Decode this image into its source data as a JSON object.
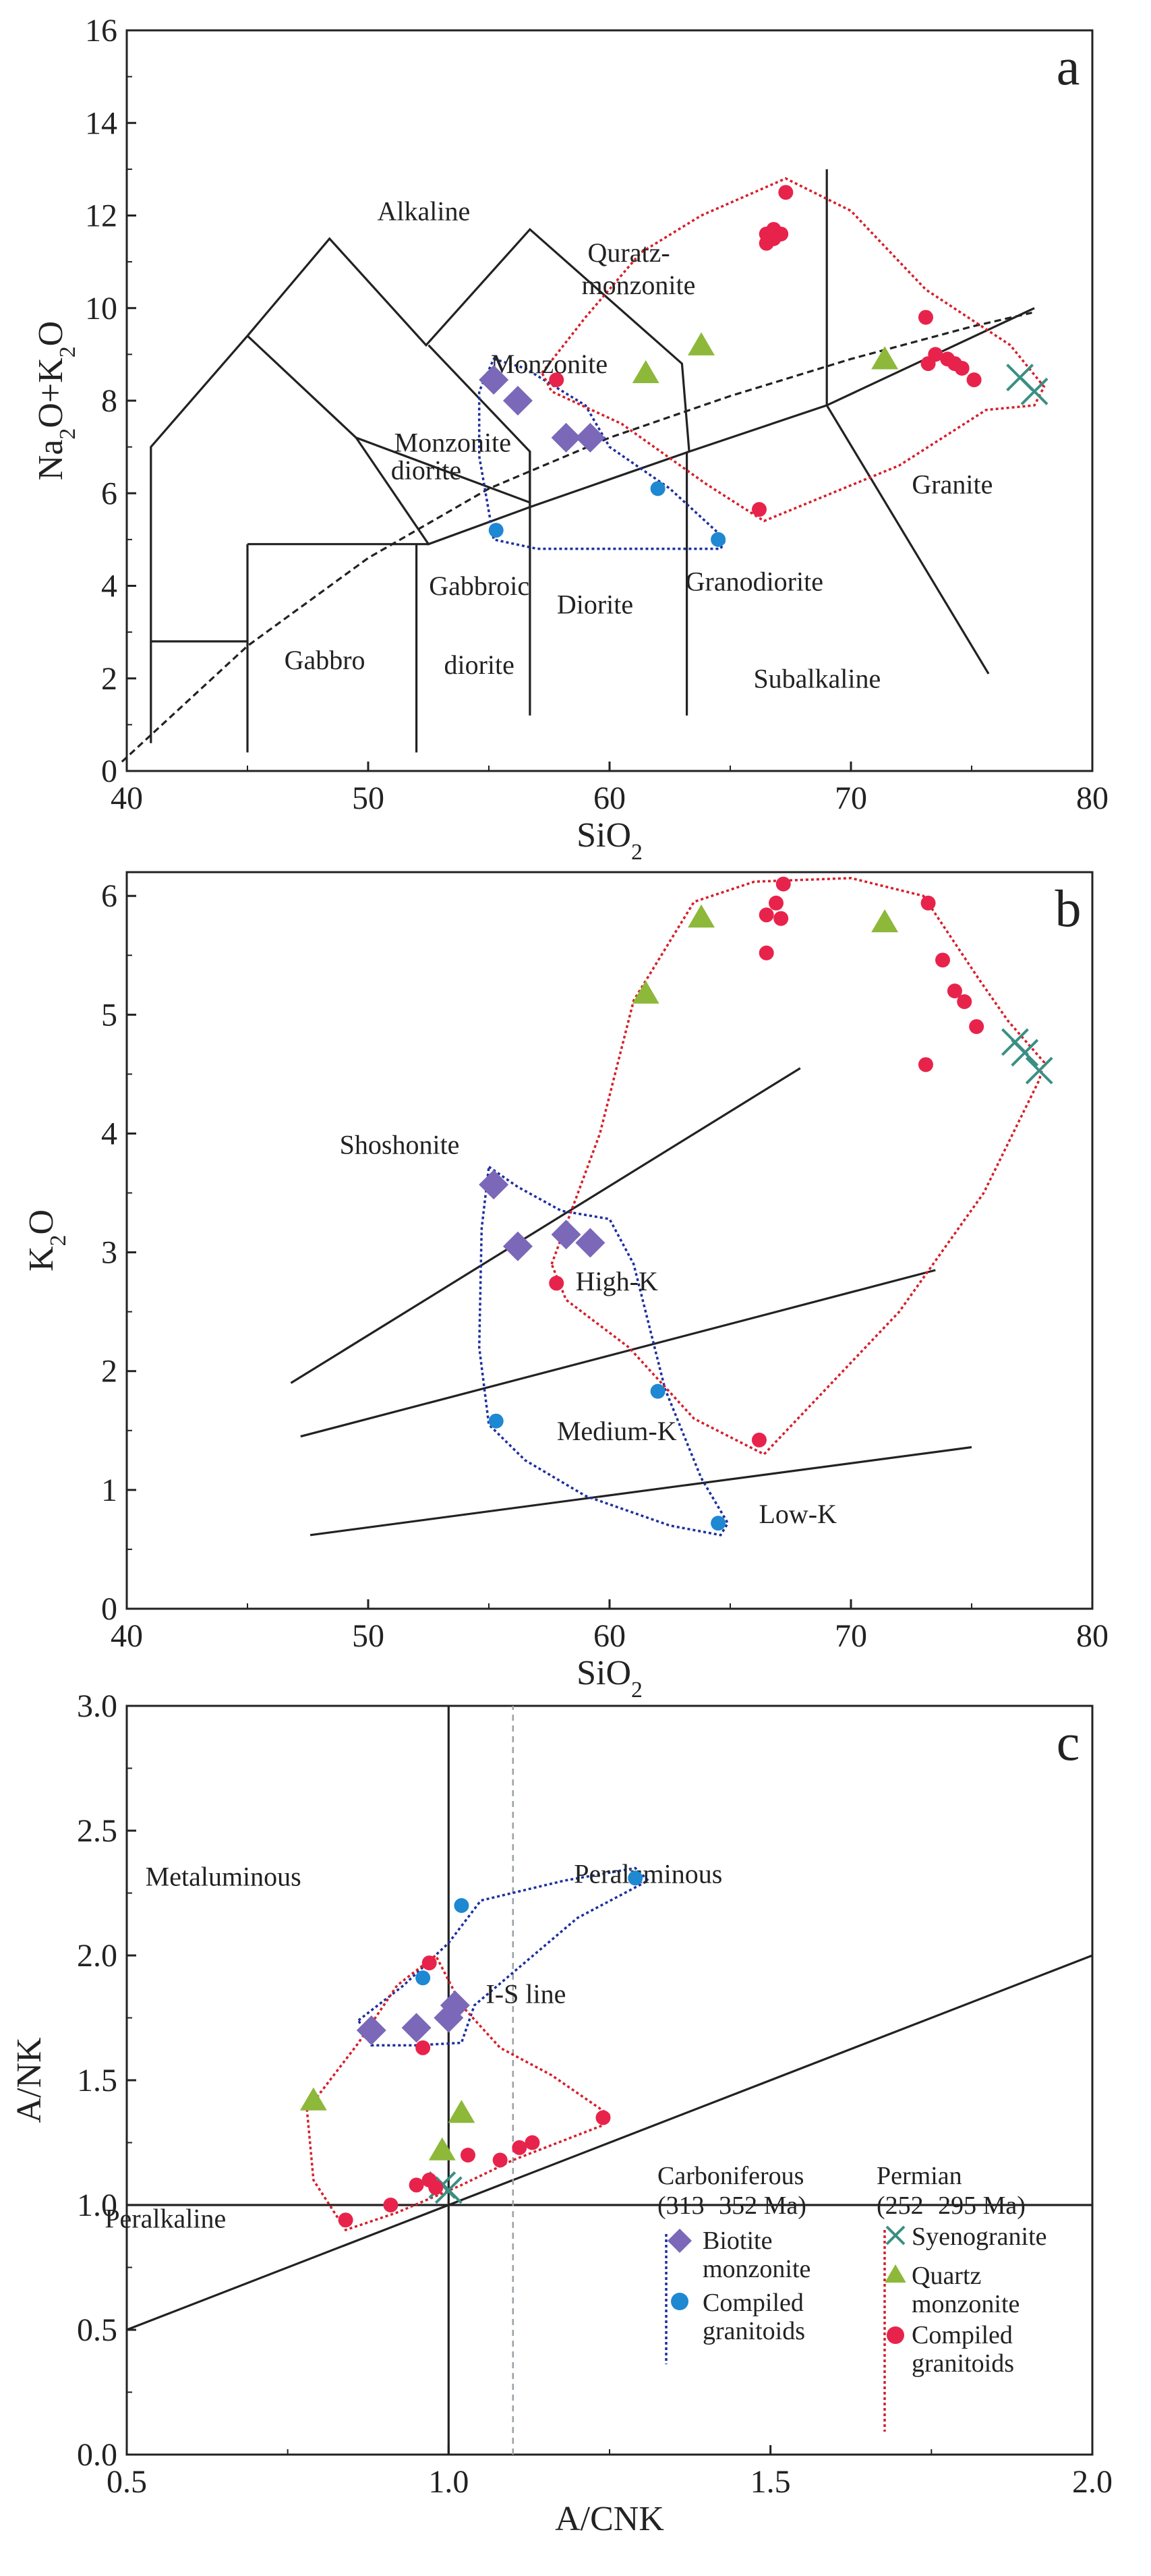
{
  "chart_data": [
    {
      "panel": "a",
      "type": "scatter",
      "title": "a",
      "xlabel": "SiO2",
      "ylabel": "Na2O+K2O",
      "xlim": [
        40,
        80
      ],
      "ylim": [
        0,
        16
      ],
      "x_ticks": [
        "40",
        "50",
        "60",
        "70",
        "80"
      ],
      "y_ticks": [
        "0",
        "2",
        "4",
        "6",
        "8",
        "10",
        "12",
        "14",
        "16"
      ],
      "field_labels": [
        {
          "text": "Alkaline",
          "x": 52.3,
          "y": 11.9
        },
        {
          "text": "Quratz-",
          "x": 60.8,
          "y": 11.0
        },
        {
          "text": "monzonite",
          "x": 61.2,
          "y": 10.3
        },
        {
          "text": "Monzonite",
          "x": 57.5,
          "y": 8.6
        },
        {
          "text": "Monzonite",
          "x": 53.5,
          "y": 6.9
        },
        {
          "text": "diorite",
          "x": 52.4,
          "y": 6.3
        },
        {
          "text": "Granite",
          "x": 74.2,
          "y": 6.0
        },
        {
          "text": "Diorite",
          "x": 59.4,
          "y": 3.4
        },
        {
          "text": "Granodiorite",
          "x": 66.0,
          "y": 3.9
        },
        {
          "text": "Gabbroic",
          "x": 54.6,
          "y": 3.8
        },
        {
          "text": "diorite",
          "x": 54.6,
          "y": 2.1
        },
        {
          "text": "Gabbro",
          "x": 48.2,
          "y": 2.2
        },
        {
          "text": "Subalkaline",
          "x": 68.6,
          "y": 1.8
        }
      ],
      "series": [
        {
          "name": "Biotite monzonite",
          "marker": "diamond",
          "color": "#7B68B8",
          "points": [
            [
              55.2,
              8.45
            ],
            [
              56.2,
              8.0
            ],
            [
              58.2,
              7.2
            ],
            [
              59.2,
              7.2
            ]
          ]
        },
        {
          "name": "Compiled granitoids (Carboniferous)",
          "marker": "circle",
          "color": "#1E88D2",
          "points": [
            [
              55.3,
              5.2
            ],
            [
              62.0,
              6.1
            ],
            [
              64.5,
              5.0
            ]
          ]
        },
        {
          "name": "Syenogranite",
          "marker": "x",
          "color": "#3A8F84",
          "points": [
            [
              77.0,
              8.5
            ],
            [
              77.6,
              8.2
            ]
          ]
        },
        {
          "name": "Quartz monzonite",
          "marker": "triangle",
          "color": "#8DB83A",
          "points": [
            [
              61.5,
              8.6
            ],
            [
              63.8,
              9.2
            ],
            [
              71.4,
              8.9
            ]
          ]
        },
        {
          "name": "Compiled granitoids (Permian)",
          "marker": "circle",
          "color": "#E8234B",
          "points": [
            [
              57.8,
              8.45
            ],
            [
              66.2,
              5.65
            ],
            [
              66.5,
              11.4
            ],
            [
              66.5,
              11.6
            ],
            [
              66.8,
              11.7
            ],
            [
              67.1,
              11.6
            ],
            [
              67.3,
              12.5
            ],
            [
              66.8,
              11.5
            ],
            [
              73.1,
              9.8
            ],
            [
              73.5,
              9.0
            ],
            [
              73.2,
              8.8
            ],
            [
              74.0,
              8.9
            ],
            [
              74.3,
              8.8
            ],
            [
              74.6,
              8.7
            ],
            [
              75.1,
              8.45
            ]
          ]
        }
      ]
    },
    {
      "panel": "b",
      "type": "scatter",
      "title": "b",
      "xlabel": "SiO2",
      "ylabel": "K2O",
      "xlim": [
        40,
        80
      ],
      "ylim": [
        0,
        6.2
      ],
      "x_ticks": [
        "40",
        "50",
        "60",
        "70",
        "80"
      ],
      "y_ticks": [
        "0",
        "1",
        "2",
        "3",
        "4",
        "5",
        "6"
      ],
      "field_labels": [
        {
          "text": "Shoshonite",
          "x": 51.3,
          "y": 3.83
        },
        {
          "text": "High-K",
          "x": 60.3,
          "y": 2.68
        },
        {
          "text": "Medium-K",
          "x": 60.3,
          "y": 1.42
        },
        {
          "text": "Low-K",
          "x": 67.8,
          "y": 0.72
        }
      ],
      "series": [
        {
          "name": "Biotite monzonite",
          "marker": "diamond",
          "color": "#7B68B8",
          "points": [
            [
              55.2,
              3.57
            ],
            [
              56.2,
              3.05
            ],
            [
              58.2,
              3.15
            ],
            [
              59.2,
              3.08
            ]
          ]
        },
        {
          "name": "Compiled granitoids (Carboniferous)",
          "marker": "circle",
          "color": "#1E88D2",
          "points": [
            [
              55.3,
              1.58
            ],
            [
              62.0,
              1.83
            ],
            [
              64.5,
              0.72
            ]
          ]
        },
        {
          "name": "Syenogranite",
          "marker": "x",
          "color": "#3A8F84",
          "points": [
            [
              76.8,
              4.77
            ],
            [
              77.2,
              4.68
            ],
            [
              77.8,
              4.53
            ]
          ]
        },
        {
          "name": "Quartz monzonite",
          "marker": "triangle",
          "color": "#8DB83A",
          "points": [
            [
              61.5,
              5.18
            ],
            [
              63.8,
              5.82
            ],
            [
              71.4,
              5.78
            ]
          ]
        },
        {
          "name": "Compiled granitoids (Permian)",
          "marker": "circle",
          "color": "#E8234B",
          "points": [
            [
              57.8,
              2.74
            ],
            [
              66.2,
              1.42
            ],
            [
              66.5,
              5.52
            ],
            [
              66.5,
              5.84
            ],
            [
              66.9,
              5.94
            ],
            [
              67.1,
              5.81
            ],
            [
              67.2,
              6.1
            ],
            [
              73.2,
              5.94
            ],
            [
              73.8,
              5.46
            ],
            [
              74.3,
              5.2
            ],
            [
              74.7,
              5.11
            ],
            [
              75.2,
              4.9
            ],
            [
              73.1,
              4.58
            ]
          ]
        }
      ]
    },
    {
      "panel": "c",
      "type": "scatter",
      "title": "c",
      "xlabel": "A/CNK",
      "ylabel": "A/NK",
      "xlim": [
        0.5,
        2.0
      ],
      "ylim": [
        0.0,
        3.0
      ],
      "x_ticks": [
        "0.5",
        "1.0",
        "1.5",
        "2.0"
      ],
      "y_ticks": [
        "0.0",
        "0.5",
        "1.0",
        "1.5",
        "2.0",
        "2.5",
        "3.0"
      ],
      "field_labels": [
        {
          "text": "Metaluminous",
          "x": 0.65,
          "y": 2.28
        },
        {
          "text": "Peraluminous",
          "x": 1.31,
          "y": 2.29
        },
        {
          "text": "I-S line",
          "x": 1.12,
          "y": 1.81
        },
        {
          "text": "Peralkaline",
          "x": 0.56,
          "y": 0.91
        }
      ],
      "series": [
        {
          "name": "Biotite monzonite",
          "marker": "diamond",
          "color": "#7B68B8",
          "points": [
            [
              0.88,
              1.7
            ],
            [
              0.95,
              1.71
            ],
            [
              1.0,
              1.75
            ],
            [
              1.01,
              1.8
            ]
          ]
        },
        {
          "name": "Compiled granitoids (Carboniferous)",
          "marker": "circle",
          "color": "#1E88D2",
          "points": [
            [
              0.96,
              1.91
            ],
            [
              1.02,
              2.2
            ],
            [
              1.29,
              2.31
            ]
          ]
        },
        {
          "name": "Syenogranite",
          "marker": "x",
          "color": "#3A8F84",
          "points": [
            [
              0.99,
              1.08
            ],
            [
              1.0,
              1.06
            ]
          ]
        },
        {
          "name": "Quartz monzonite",
          "marker": "triangle",
          "color": "#8DB83A",
          "points": [
            [
              0.79,
              1.42
            ],
            [
              0.99,
              1.22
            ],
            [
              1.02,
              1.37
            ]
          ]
        },
        {
          "name": "Compiled granitoids (Permian)",
          "marker": "circle",
          "color": "#E8234B",
          "points": [
            [
              0.84,
              0.94
            ],
            [
              0.91,
              1.0
            ],
            [
              0.95,
              1.08
            ],
            [
              0.97,
              1.1
            ],
            [
              0.98,
              1.07
            ],
            [
              1.03,
              1.2
            ],
            [
              1.08,
              1.18
            ],
            [
              1.11,
              1.23
            ],
            [
              1.13,
              1.25
            ],
            [
              1.24,
              1.35
            ],
            [
              0.97,
              1.97
            ],
            [
              0.96,
              1.63
            ]
          ]
        }
      ]
    }
  ],
  "legend": {
    "carboniferous_title": "Carboniferous",
    "carboniferous_age": "(313−352 Ma)",
    "permian_title": "Permian",
    "permian_age": "(252−295 Ma)",
    "biotite_monzonite": [
      "Biotite",
      "monzonite"
    ],
    "compiled_carb": [
      "Compiled",
      "granitoids"
    ],
    "syenogranite": "Syenogranite",
    "quartz_monzonite": [
      "Quartz",
      "monzonite"
    ],
    "compiled_perm": [
      "Compiled",
      "granitoids"
    ]
  },
  "colors": {
    "diamond": "#7B68B8",
    "blue": "#1E88D2",
    "red": "#E8234B",
    "green": "#8DB83A",
    "teal": "#3A8F84",
    "blue_outline": "#1C2F9E",
    "red_outline": "#D51F2A"
  }
}
